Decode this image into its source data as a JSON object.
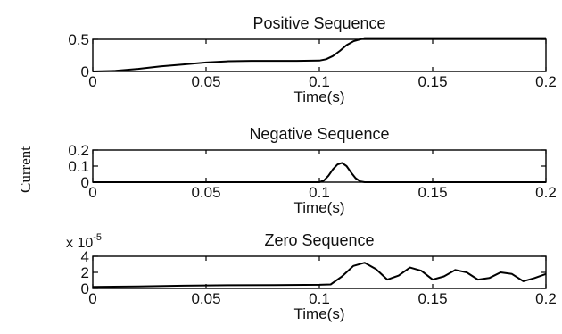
{
  "chart_data": [
    {
      "type": "line",
      "title": "Positive Sequence",
      "xlabel": "Time(s)",
      "xlim": [
        0,
        0.2
      ],
      "ylim": [
        0,
        0.5
      ],
      "xticks": [
        "0",
        "0.05",
        "0.1",
        "0.15",
        "0.2"
      ],
      "yticks": [
        "0",
        "0.5"
      ],
      "series": [
        {
          "x": [
            0,
            0.01,
            0.02,
            0.03,
            0.04,
            0.05,
            0.06,
            0.07,
            0.08,
            0.09,
            0.1,
            0.103,
            0.106,
            0.109,
            0.112,
            0.115,
            0.118,
            0.12,
            0.13,
            0.14,
            0.15,
            0.16,
            0.17,
            0.18,
            0.19,
            0.2
          ],
          "y": [
            0,
            0.01,
            0.04,
            0.08,
            0.11,
            0.14,
            0.16,
            0.165,
            0.165,
            0.165,
            0.17,
            0.19,
            0.24,
            0.32,
            0.41,
            0.47,
            0.5,
            0.52,
            0.52,
            0.52,
            0.52,
            0.52,
            0.52,
            0.52,
            0.52,
            0.52
          ]
        }
      ]
    },
    {
      "type": "line",
      "title": "Negative Sequence",
      "xlabel": "Time(s)",
      "xlim": [
        0,
        0.2
      ],
      "ylim": [
        0,
        0.2
      ],
      "xticks": [
        "0",
        "0.05",
        "0.1",
        "0.15",
        "0.2"
      ],
      "yticks": [
        "0",
        "0.1",
        "0.2"
      ],
      "series": [
        {
          "x": [
            0,
            0.1,
            0.102,
            0.104,
            0.106,
            0.108,
            0.11,
            0.112,
            0.114,
            0.116,
            0.118,
            0.12,
            0.2
          ],
          "y": [
            0,
            0,
            0.01,
            0.04,
            0.08,
            0.11,
            0.12,
            0.1,
            0.06,
            0.025,
            0.005,
            0,
            0
          ]
        }
      ]
    },
    {
      "type": "line",
      "title": "Zero Sequence",
      "xlabel": "Time(s)",
      "xlim": [
        0,
        0.2
      ],
      "ylim": [
        0,
        4
      ],
      "xticks": [
        "0",
        "0.05",
        "0.1",
        "0.15",
        "0.2"
      ],
      "yticks": [
        "0",
        "2",
        "4"
      ],
      "y_multiplier_base": "x 10",
      "y_multiplier_exponent": "-5",
      "series": [
        {
          "x": [
            0,
            0.02,
            0.04,
            0.06,
            0.08,
            0.1,
            0.105,
            0.11,
            0.115,
            0.12,
            0.125,
            0.13,
            0.135,
            0.14,
            0.145,
            0.15,
            0.155,
            0.16,
            0.165,
            0.17,
            0.175,
            0.18,
            0.185,
            0.19,
            0.195,
            0.2
          ],
          "y": [
            0.2,
            0.25,
            0.35,
            0.4,
            0.42,
            0.45,
            0.5,
            1.5,
            2.8,
            3.2,
            2.4,
            1.1,
            1.6,
            2.6,
            2.2,
            1.1,
            1.5,
            2.3,
            2.0,
            1.1,
            1.3,
            2.0,
            1.8,
            0.9,
            1.3,
            1.8
          ]
        }
      ]
    }
  ],
  "shared_ylabel": "Current"
}
